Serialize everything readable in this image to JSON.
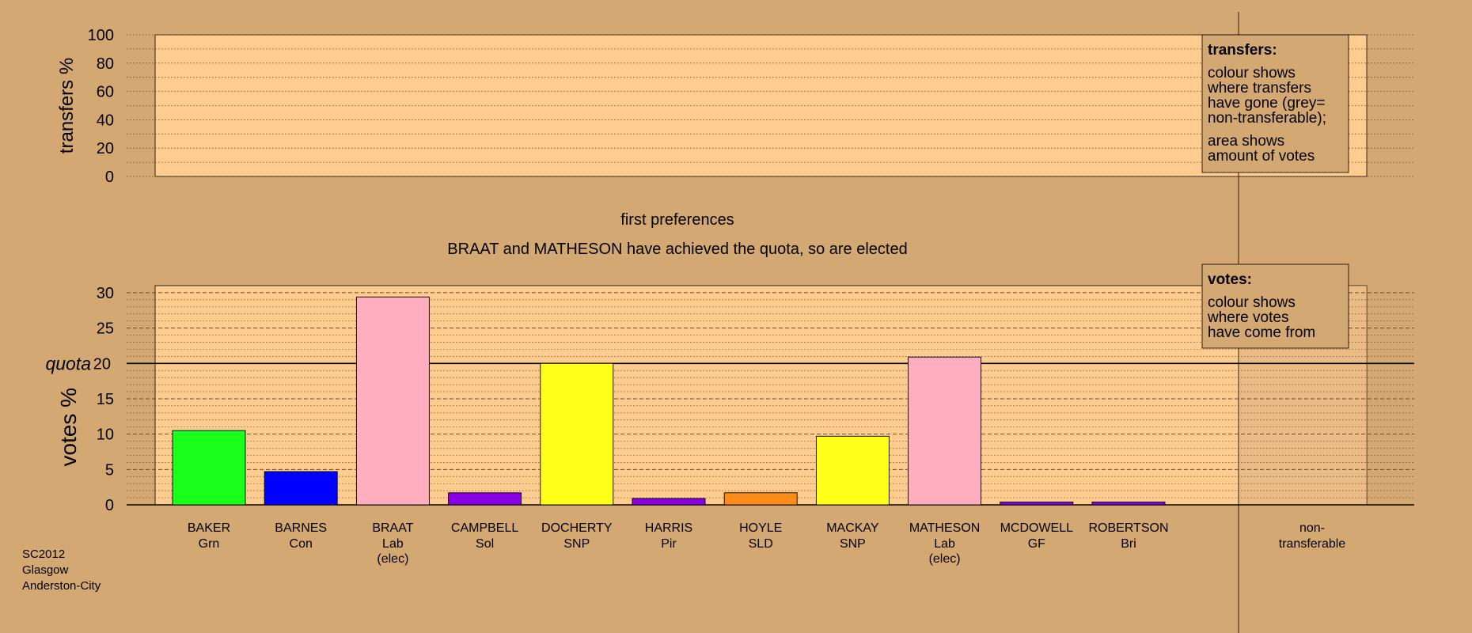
{
  "colors": {
    "background": "#d4a872",
    "plot_bg": "#ffcc8f",
    "nontransferable_bg": "#d9ad7b",
    "axis": "#000000"
  },
  "top_panel": {
    "ylabel": "transfers %",
    "ticks": [
      0,
      20,
      40,
      60,
      80,
      100
    ],
    "ylim": [
      0,
      100
    ],
    "legend": {
      "title": "transfers:",
      "lines1": [
        "colour shows",
        "where transfers",
        "have gone (grey=",
        "non-transferable);"
      ],
      "lines2": [
        "area shows",
        "amount of votes"
      ]
    }
  },
  "stage": {
    "title": "first preferences",
    "subtitle": "BRAAT and MATHESON have achieved the quota, so are elected"
  },
  "chart_data": {
    "type": "bar",
    "ylabel": "votes %",
    "ylim": [
      0,
      31
    ],
    "ticks": [
      0,
      5,
      10,
      15,
      20,
      25,
      30
    ],
    "quota": 20,
    "quota_label": "quota",
    "categories": [
      {
        "name": "BAKER",
        "party": "Grn",
        "note": "",
        "value": 10.5,
        "color": "#1aff1a"
      },
      {
        "name": "BARNES",
        "party": "Con",
        "note": "",
        "value": 4.7,
        "color": "#0000ff"
      },
      {
        "name": "BRAAT",
        "party": "Lab",
        "note": "(elec)",
        "value": 29.4,
        "color": "#ffaec0"
      },
      {
        "name": "CAMPBELL",
        "party": "Sol",
        "note": "",
        "value": 1.7,
        "color": "#8a00e6"
      },
      {
        "name": "DOCHERTY",
        "party": "SNP",
        "note": "",
        "value": 20.0,
        "color": "#ffff1a"
      },
      {
        "name": "HARRIS",
        "party": "Pir",
        "note": "",
        "value": 0.9,
        "color": "#8a00e6"
      },
      {
        "name": "HOYLE",
        "party": "SLD",
        "note": "",
        "value": 1.7,
        "color": "#ff8c1a"
      },
      {
        "name": "MACKAY",
        "party": "SNP",
        "note": "",
        "value": 9.7,
        "color": "#ffff1a"
      },
      {
        "name": "MATHESON",
        "party": "Lab",
        "note": "(elec)",
        "value": 20.9,
        "color": "#ffaec0"
      },
      {
        "name": "MCDOWELL",
        "party": "GF",
        "note": "",
        "value": 0.4,
        "color": "#8a00e6"
      },
      {
        "name": "ROBERTSON",
        "party": "Bri",
        "note": "",
        "value": 0.4,
        "color": "#8a00e6"
      }
    ],
    "nontransferable_label": [
      "non-",
      "transferable"
    ],
    "legend": {
      "title": "votes:",
      "lines": [
        "colour shows",
        "where votes",
        "have come from"
      ]
    }
  },
  "footer": {
    "lines": [
      "SC2012",
      "Glasgow",
      "Anderston-City"
    ]
  }
}
